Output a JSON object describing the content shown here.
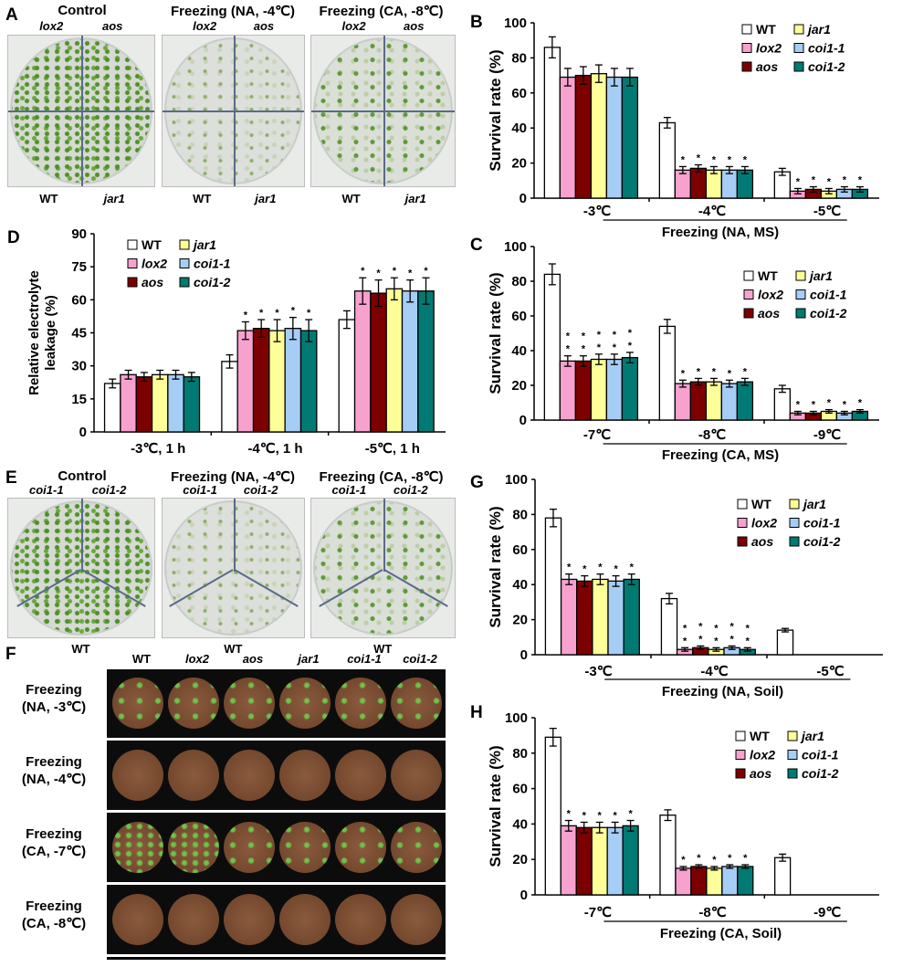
{
  "panels": {
    "A": {
      "letter": "A",
      "titles": [
        "Control",
        "Freezing (NA, -4℃)",
        "Freezing (CA, -8℃)"
      ],
      "top_genotypes": [
        "lox2",
        "aos"
      ],
      "bottom_genotypes": [
        "WT",
        "jar1"
      ]
    },
    "E": {
      "letter": "E",
      "titles": [
        "Control",
        "Freezing (NA, -4℃)",
        "Freezing (CA, -8℃)"
      ],
      "top_genotypes": [
        "coi1-1",
        "coi1-2"
      ],
      "bottom_genotype": "WT"
    },
    "F": {
      "letter": "F",
      "column_labels": [
        "WT",
        "lox2",
        "aos",
        "jar1",
        "coi1-1",
        "coi1-2"
      ],
      "row_labels": [
        [
          "Freezing",
          "(NA, -3℃)"
        ],
        [
          "Freezing",
          "(NA, -4℃)"
        ],
        [
          "Freezing",
          "(CA, -7℃)"
        ],
        [
          "Freezing",
          "(CA, -8℃)"
        ]
      ]
    }
  },
  "colors": {
    "WT": "#ffffff",
    "lox2": "#f7a1cf",
    "aos": "#7d0000",
    "jar1": "#ffff99",
    "coi1-1": "#a6cdf5",
    "coi1-2": "#007a72"
  },
  "chart_data": [
    {
      "id": "B",
      "letter": "B",
      "type": "bar",
      "ylabel": "Survival rate (%)",
      "ylim": [
        0,
        100
      ],
      "yticks": [
        "0",
        "20",
        "40",
        "60",
        "80",
        "100"
      ],
      "categories": [
        "-3℃",
        "-4℃",
        "-5℃"
      ],
      "group_label": "Freezing (NA, MS)",
      "series": [
        {
          "name": "WT",
          "values": [
            86,
            43,
            15
          ],
          "errors": [
            6,
            3,
            2
          ],
          "sig": [
            0,
            0,
            0
          ]
        },
        {
          "name": "lox2",
          "values": [
            69,
            16,
            4
          ],
          "errors": [
            5,
            2,
            1.5
          ],
          "sig": [
            0,
            1,
            1
          ]
        },
        {
          "name": "aos",
          "values": [
            70,
            17,
            5
          ],
          "errors": [
            5,
            2,
            1.5
          ],
          "sig": [
            0,
            1,
            1
          ]
        },
        {
          "name": "jar1",
          "values": [
            71,
            16,
            4
          ],
          "errors": [
            5,
            2,
            1.5
          ],
          "sig": [
            0,
            1,
            1
          ]
        },
        {
          "name": "coi1-1",
          "values": [
            69,
            16,
            5
          ],
          "errors": [
            5,
            2,
            1.5
          ],
          "sig": [
            0,
            1,
            1
          ]
        },
        {
          "name": "coi1-2",
          "values": [
            69,
            16,
            5
          ],
          "errors": [
            5,
            2,
            1.5
          ],
          "sig": [
            0,
            1,
            1
          ]
        }
      ],
      "legend": "top-right"
    },
    {
      "id": "C",
      "letter": "C",
      "type": "bar",
      "ylabel": "Survival rate (%)",
      "ylim": [
        0,
        100
      ],
      "yticks": [
        "0",
        "20",
        "40",
        "60",
        "80",
        "100"
      ],
      "categories": [
        "-7℃",
        "-8℃",
        "-9℃"
      ],
      "group_label": "Freezing (CA, MS)",
      "series": [
        {
          "name": "WT",
          "values": [
            84,
            54,
            18
          ],
          "errors": [
            6,
            4,
            2
          ],
          "sig": [
            0,
            0,
            0
          ]
        },
        {
          "name": "lox2",
          "values": [
            34,
            21,
            4
          ],
          "errors": [
            3,
            2,
            1
          ],
          "sig": [
            2,
            1,
            1
          ]
        },
        {
          "name": "aos",
          "values": [
            34,
            22,
            4
          ],
          "errors": [
            3,
            2,
            1
          ],
          "sig": [
            2,
            1,
            1
          ]
        },
        {
          "name": "jar1",
          "values": [
            35,
            22,
            5
          ],
          "errors": [
            3,
            2,
            1
          ],
          "sig": [
            2,
            1,
            1
          ]
        },
        {
          "name": "coi1-1",
          "values": [
            35,
            21,
            4
          ],
          "errors": [
            3,
            2,
            1
          ],
          "sig": [
            2,
            1,
            1
          ]
        },
        {
          "name": "coi1-2",
          "values": [
            36,
            22,
            5
          ],
          "errors": [
            3,
            2,
            1
          ],
          "sig": [
            2,
            1,
            1
          ]
        }
      ],
      "legend": "top-right"
    },
    {
      "id": "D",
      "letter": "D",
      "type": "bar",
      "ylabel": [
        "Relative electrolyte",
        "leakage (%)"
      ],
      "ylim": [
        0,
        90
      ],
      "yticks": [
        "0",
        "15",
        "30",
        "45",
        "60",
        "75",
        "90"
      ],
      "categories": [
        "-3℃, 1 h",
        "-4℃, 1 h",
        "-5℃, 1 h"
      ],
      "group_label": "",
      "series": [
        {
          "name": "WT",
          "values": [
            22,
            32,
            51
          ],
          "errors": [
            2,
            3,
            4
          ],
          "sig": [
            0,
            0,
            0
          ]
        },
        {
          "name": "lox2",
          "values": [
            26,
            46,
            64
          ],
          "errors": [
            2,
            4,
            6
          ],
          "sig": [
            0,
            1,
            1
          ]
        },
        {
          "name": "aos",
          "values": [
            25,
            47,
            63
          ],
          "errors": [
            2,
            4,
            6
          ],
          "sig": [
            0,
            1,
            1
          ]
        },
        {
          "name": "jar1",
          "values": [
            26,
            46,
            65
          ],
          "errors": [
            2,
            5,
            5
          ],
          "sig": [
            0,
            1,
            1
          ]
        },
        {
          "name": "coi1-1",
          "values": [
            26,
            47,
            64
          ],
          "errors": [
            2,
            5,
            5
          ],
          "sig": [
            0,
            1,
            1
          ]
        },
        {
          "name": "coi1-2",
          "values": [
            25,
            46,
            64
          ],
          "errors": [
            2,
            5,
            6
          ],
          "sig": [
            0,
            1,
            1
          ]
        }
      ],
      "legend": "top-left"
    },
    {
      "id": "G",
      "letter": "G",
      "type": "bar",
      "ylabel": "Survival rate (%)",
      "ylim": [
        0,
        100
      ],
      "yticks": [
        "0",
        "20",
        "40",
        "60",
        "80",
        "100"
      ],
      "categories": [
        "-3℃",
        "-4℃",
        "-5℃"
      ],
      "group_label": "Freezing (NA, Soil)",
      "series": [
        {
          "name": "WT",
          "values": [
            78,
            32,
            14
          ],
          "errors": [
            5,
            3,
            1
          ],
          "sig": [
            0,
            0,
            0
          ]
        },
        {
          "name": "lox2",
          "values": [
            43,
            3,
            0
          ],
          "errors": [
            3,
            1,
            0
          ],
          "sig": [
            1,
            2,
            0
          ]
        },
        {
          "name": "aos",
          "values": [
            42,
            4,
            0
          ],
          "errors": [
            3,
            1,
            0
          ],
          "sig": [
            1,
            2,
            0
          ]
        },
        {
          "name": "jar1",
          "values": [
            43,
            3,
            0
          ],
          "errors": [
            3,
            1,
            0
          ],
          "sig": [
            1,
            2,
            0
          ]
        },
        {
          "name": "coi1-1",
          "values": [
            42,
            4,
            0
          ],
          "errors": [
            3,
            1,
            0
          ],
          "sig": [
            1,
            2,
            0
          ]
        },
        {
          "name": "coi1-2",
          "values": [
            43,
            3,
            0
          ],
          "errors": [
            3,
            1,
            0
          ],
          "sig": [
            1,
            2,
            0
          ]
        }
      ],
      "legend": "top-right"
    },
    {
      "id": "H",
      "letter": "H",
      "type": "bar",
      "ylabel": "Survival rate (%)",
      "ylim": [
        0,
        100
      ],
      "yticks": [
        "0",
        "20",
        "40",
        "60",
        "80",
        "100"
      ],
      "categories": [
        "-7℃",
        "-8℃",
        "-9℃"
      ],
      "group_label": "Freezing (CA, Soil)",
      "series": [
        {
          "name": "WT",
          "values": [
            89,
            45,
            21
          ],
          "errors": [
            5,
            3,
            2
          ],
          "sig": [
            0,
            0,
            0
          ]
        },
        {
          "name": "lox2",
          "values": [
            39,
            15,
            0
          ],
          "errors": [
            3,
            1,
            0
          ],
          "sig": [
            1,
            1,
            0
          ]
        },
        {
          "name": "aos",
          "values": [
            38,
            16,
            0
          ],
          "errors": [
            3,
            1,
            0
          ],
          "sig": [
            1,
            1,
            0
          ]
        },
        {
          "name": "jar1",
          "values": [
            38,
            15,
            0
          ],
          "errors": [
            3,
            1,
            0
          ],
          "sig": [
            1,
            1,
            0
          ]
        },
        {
          "name": "coi1-1",
          "values": [
            38,
            16,
            0
          ],
          "errors": [
            3,
            1,
            0
          ],
          "sig": [
            1,
            1,
            0
          ]
        },
        {
          "name": "coi1-2",
          "values": [
            39,
            16,
            0
          ],
          "errors": [
            3,
            1,
            0
          ],
          "sig": [
            1,
            1,
            0
          ]
        }
      ],
      "legend": "top-right"
    }
  ]
}
